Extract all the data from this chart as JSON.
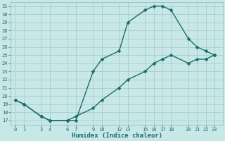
{
  "xlabel": "Humidex (Indice chaleur)",
  "line_color": "#1a6b6b",
  "bg_color": "#c8e8e8",
  "grid_color": "#a0c8c8",
  "upper_x": [
    0,
    1,
    3,
    4,
    6,
    7,
    9,
    10,
    12,
    13,
    15,
    16,
    17,
    18,
    20,
    21,
    22,
    23
  ],
  "upper_y": [
    19.5,
    19.0,
    17.5,
    17.0,
    17.0,
    17.0,
    23.0,
    24.5,
    25.5,
    29.0,
    30.5,
    31.0,
    31.0,
    30.5,
    27.0,
    26.0,
    25.5,
    25.0
  ],
  "lower_x": [
    0,
    1,
    3,
    4,
    6,
    7,
    9,
    10,
    12,
    13,
    15,
    16,
    17,
    18,
    20,
    21,
    22,
    23
  ],
  "lower_y": [
    19.5,
    19.0,
    17.5,
    17.0,
    17.0,
    17.5,
    18.5,
    19.5,
    21.0,
    22.0,
    23.0,
    24.0,
    24.5,
    25.0,
    24.0,
    24.5,
    24.5,
    25.0
  ],
  "xlim": [
    -0.5,
    24.0
  ],
  "ylim": [
    16.5,
    31.5
  ],
  "yticks": [
    17,
    18,
    19,
    20,
    21,
    22,
    23,
    24,
    25,
    26,
    27,
    28,
    29,
    30,
    31
  ],
  "xticks": [
    0,
    1,
    3,
    4,
    6,
    7,
    9,
    10,
    12,
    13,
    15,
    16,
    17,
    18,
    20,
    21,
    22,
    23
  ],
  "markersize": 2.5,
  "linewidth": 1.0
}
